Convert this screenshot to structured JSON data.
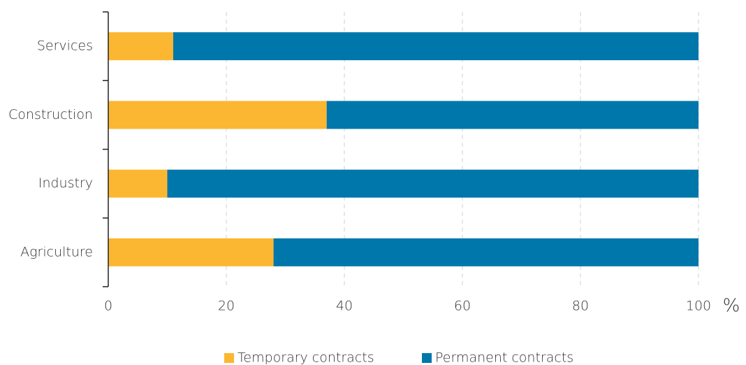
{
  "chart_data": {
    "type": "stacked-bar-horizontal",
    "categories": [
      "Agriculture",
      "Industry",
      "Construction",
      "Services"
    ],
    "series": [
      {
        "name": "Temporary contracts",
        "color": "#fbb731",
        "values": [
          28,
          10,
          37,
          11
        ]
      },
      {
        "name": "Permanent contracts",
        "color": "#0077aa",
        "values": [
          72,
          90,
          63,
          89
        ]
      }
    ],
    "xlim": [
      0,
      100
    ],
    "xticks": [
      0,
      20,
      40,
      60,
      80,
      100
    ],
    "x_label": "%",
    "grid": true,
    "legend": "bottom"
  }
}
